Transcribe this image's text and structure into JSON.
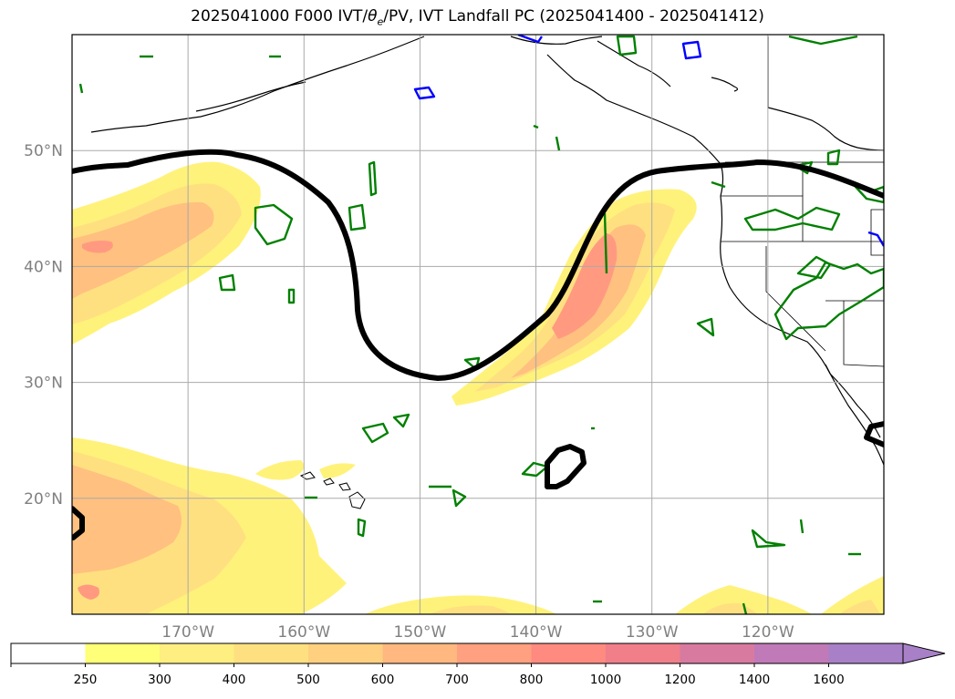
{
  "title": "2025041000 F000 IVT/θe/PV, IVT Landfall PC (2025041400 - 2025041412)",
  "title_parts": {
    "before": "2025041000 F000 IVT/",
    "theta": "θ",
    "sub": "e",
    "after": "/PV, IVT Landfall PC (2025041400 - 2025041412)"
  },
  "map": {
    "lon_range": [
      -180,
      -110
    ],
    "lat_range": [
      10,
      60
    ],
    "grid": true,
    "lat_ticks": [
      {
        "value": 20,
        "label": "20°N"
      },
      {
        "value": 30,
        "label": "30°N"
      },
      {
        "value": 40,
        "label": "40°N"
      },
      {
        "value": 50,
        "label": "50°N"
      }
    ],
    "lon_ticks": [
      {
        "value": -170,
        "label": "170°W"
      },
      {
        "value": -160,
        "label": "160°W"
      },
      {
        "value": -150,
        "label": "150°W"
      },
      {
        "value": -140,
        "label": "140°W"
      },
      {
        "value": -130,
        "label": "130°W"
      },
      {
        "value": -120,
        "label": "120°W"
      }
    ]
  },
  "colorbar": {
    "extend": "max",
    "bins": [
      {
        "label": "",
        "color": "#ffffff"
      },
      {
        "label": "250",
        "color": "#ffff78"
      },
      {
        "label": "300",
        "color": "#ffee80"
      },
      {
        "label": "400",
        "color": "#ffe080"
      },
      {
        "label": "500",
        "color": "#ffd080"
      },
      {
        "label": "600",
        "color": "#ffb880"
      },
      {
        "label": "700",
        "color": "#ffa080"
      },
      {
        "label": "800",
        "color": "#ff8a80"
      },
      {
        "label": "1000",
        "color": "#f07f8a"
      },
      {
        "label": "1200",
        "color": "#d87aa0"
      },
      {
        "label": "1400",
        "color": "#c07ab8"
      },
      {
        "label": "1600",
        "color": "#a880c8"
      }
    ]
  },
  "colors": {
    "ivt_light": "#fff27a",
    "ivt_mid": "#ffe080",
    "ivt_orange": "#ffc080",
    "ivt_core": "#ff9a80",
    "pv_contour": "#008000",
    "neg_contour": "#0000ff",
    "landfall_contour": "#000000"
  }
}
